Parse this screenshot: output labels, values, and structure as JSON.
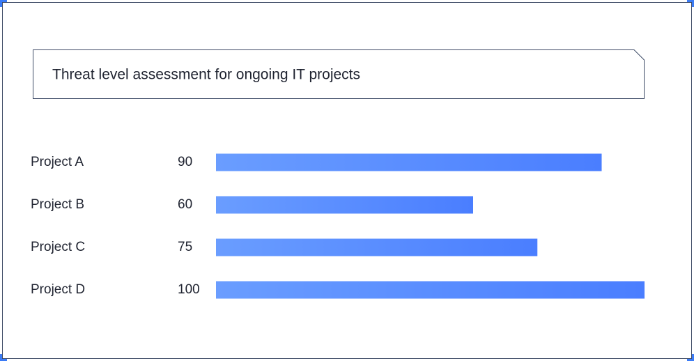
{
  "chart_data": {
    "type": "bar",
    "orientation": "horizontal",
    "title": "Threat level assessment for ongoing IT projects",
    "categories": [
      "Project A",
      "Project B",
      "Project C",
      "Project D"
    ],
    "values": [
      90,
      60,
      75,
      100
    ],
    "color": "#4a7eff"
  }
}
